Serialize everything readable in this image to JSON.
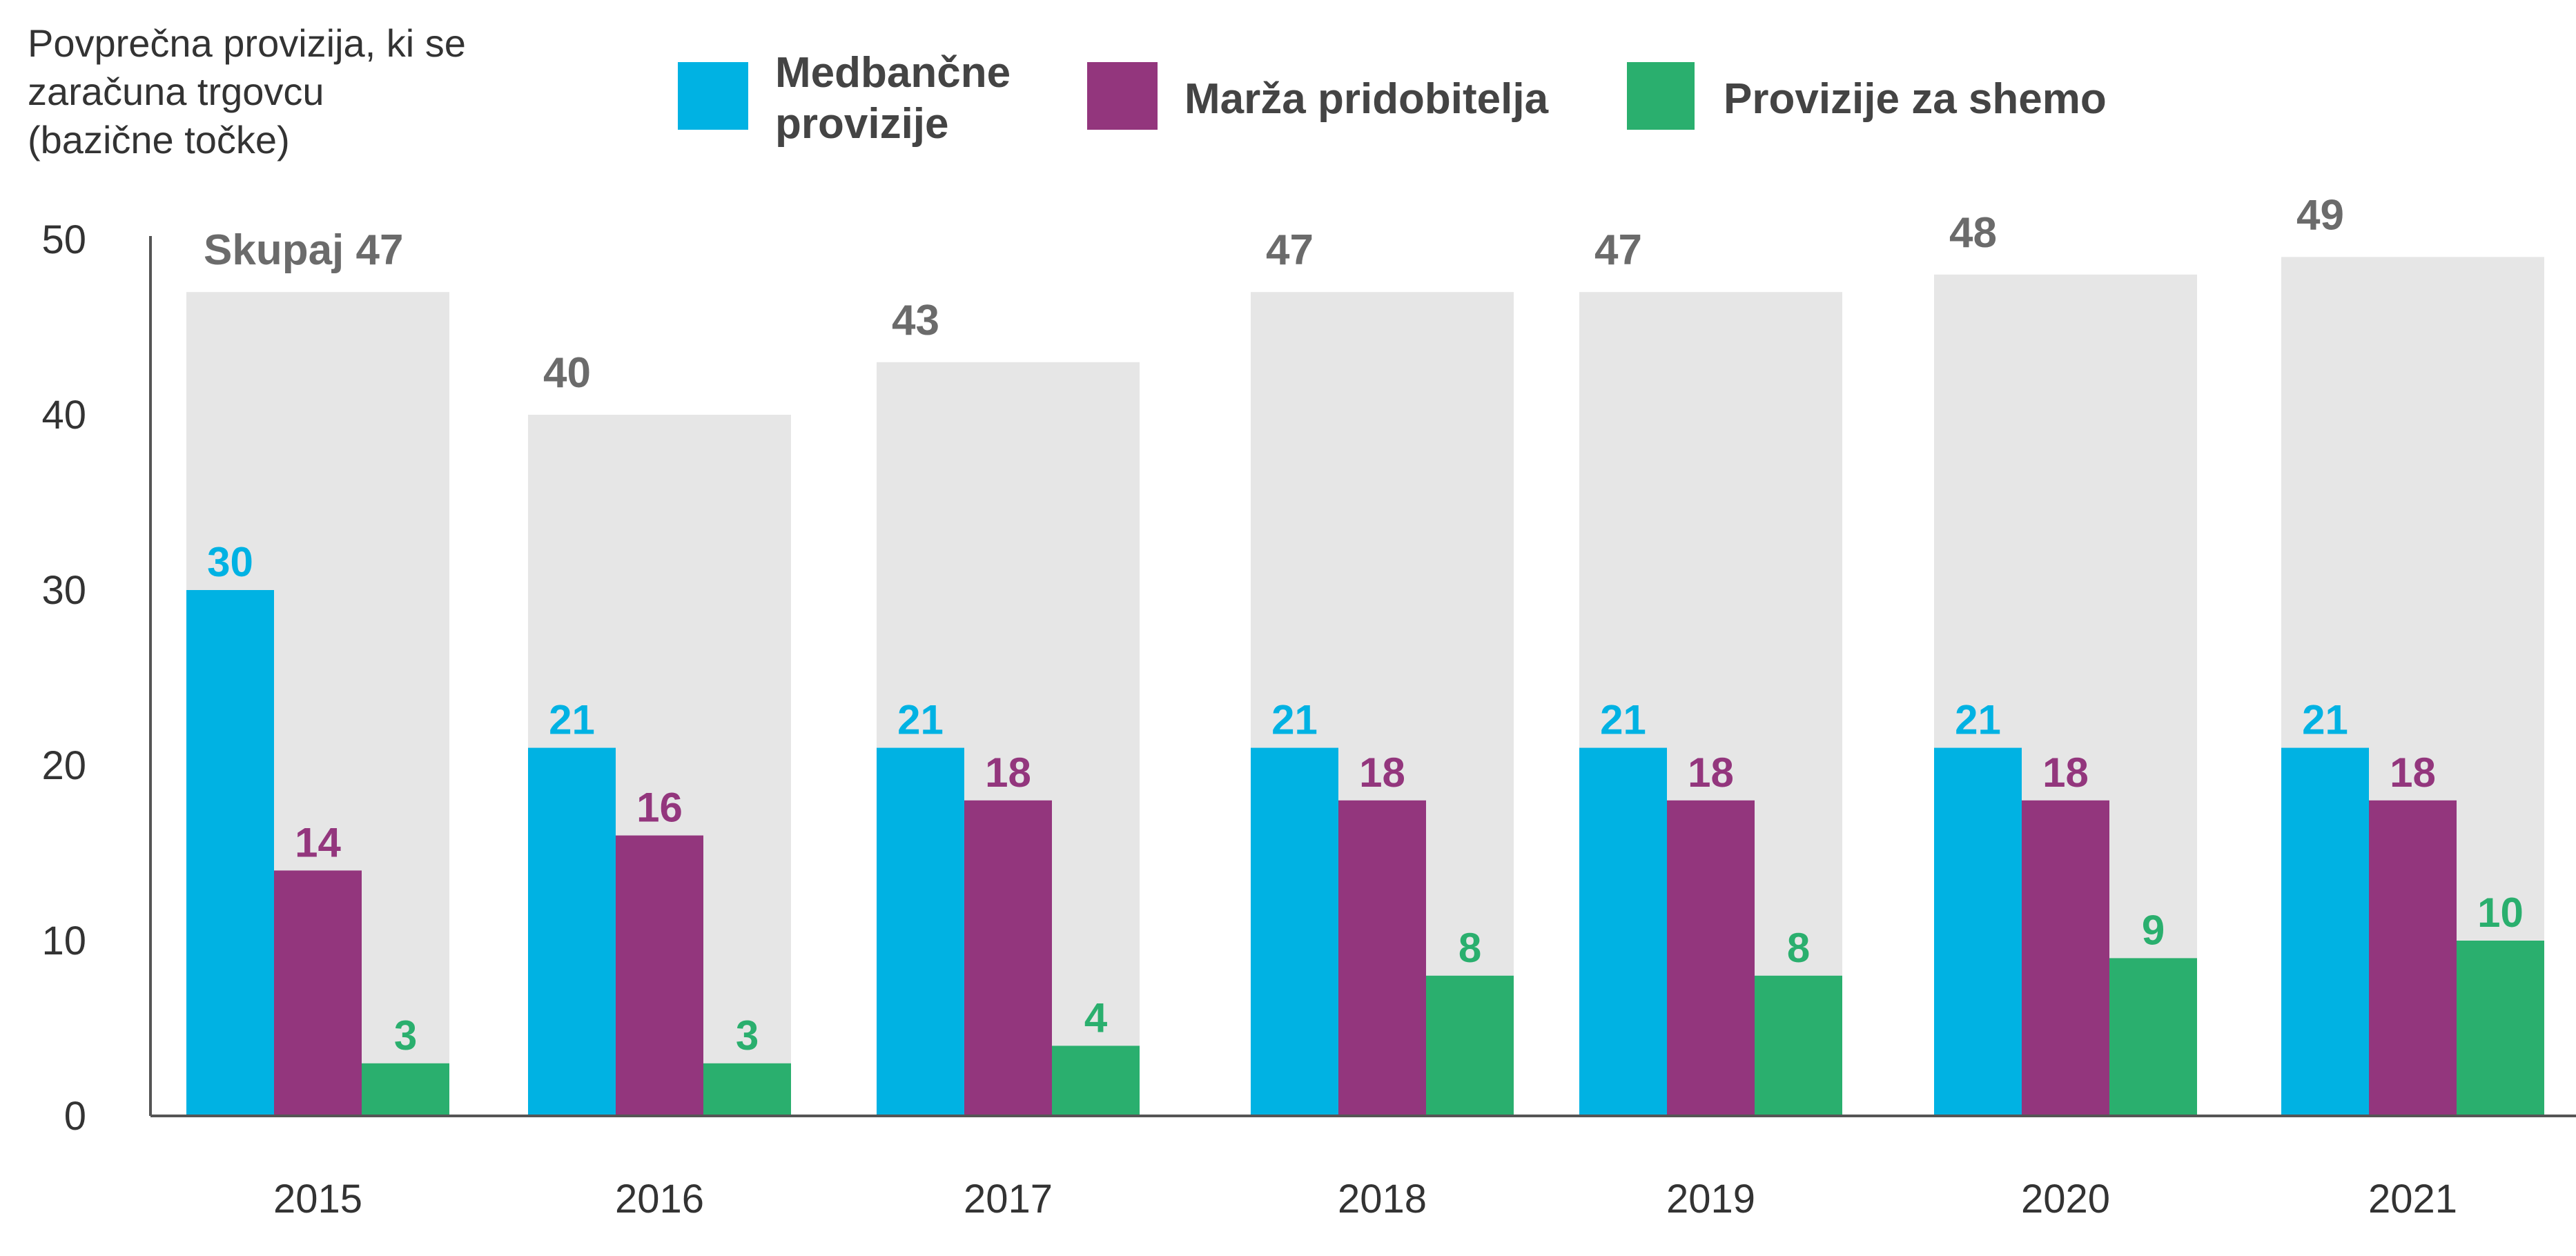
{
  "chart_data": {
    "type": "bar",
    "ylabel_lines": [
      "Povprečna provizija, ki se",
      "zaračuna trgovcu",
      "(bazične točke)"
    ],
    "xlabel": "",
    "ylim": [
      0,
      50
    ],
    "yticks": [
      0,
      10,
      20,
      30,
      40,
      50
    ],
    "categories": [
      "2015",
      "2016",
      "2017",
      "2018",
      "2019",
      "2020",
      "2021"
    ],
    "totals": [
      47,
      40,
      43,
      47,
      47,
      48,
      49
    ],
    "total_label_prefix": "Skupaj",
    "series": [
      {
        "name": "Medbančne provizije",
        "name_lines": [
          "Medbančne",
          "provizije"
        ],
        "color": "#00b2e3",
        "values": [
          30,
          21,
          21,
          21,
          21,
          21,
          21
        ]
      },
      {
        "name": "Marža pridobitelja",
        "name_lines": [
          "Marža pridobitelja"
        ],
        "color": "#93367d",
        "values": [
          14,
          16,
          18,
          18,
          18,
          18,
          18
        ]
      },
      {
        "name": "Provizije za shemo",
        "name_lines": [
          "Provizije za shemo"
        ],
        "color": "#2aaf6e",
        "values": [
          3,
          3,
          4,
          8,
          8,
          9,
          10
        ]
      }
    ],
    "total_color": "#e6e6e6",
    "grid": false,
    "legend_position": "top"
  }
}
